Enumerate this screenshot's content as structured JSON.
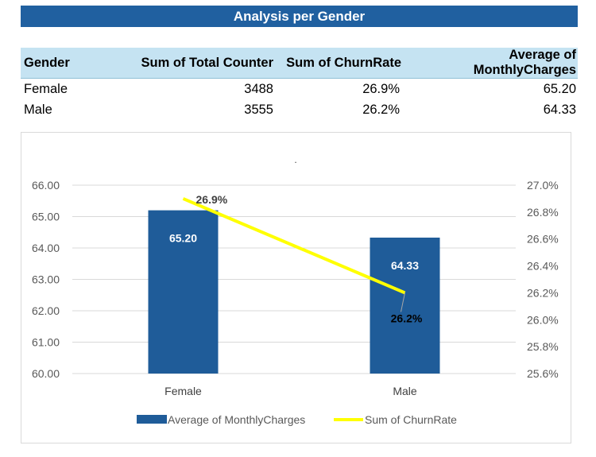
{
  "report": {
    "title": "Analysis per Gender"
  },
  "pivot_table": {
    "headers": [
      "Gender",
      "Sum of Total Counter",
      "Sum of ChurnRate",
      "Average of MonthlyCharges"
    ],
    "rows": [
      [
        "Female",
        "3488",
        "26.9%",
        "65.20"
      ],
      [
        "Male",
        "3555",
        "26.2%",
        "64.33"
      ]
    ]
  },
  "chart_data": {
    "type": "bar",
    "title": ".",
    "categories": [
      "Female",
      "Male"
    ],
    "series": [
      {
        "name": "Average of MonthlyCharges",
        "type": "bar",
        "axis": "primary",
        "values": [
          65.2,
          64.33
        ],
        "labels": [
          "65.20",
          "64.33"
        ],
        "color": "#1f5c99"
      },
      {
        "name": "Sum of ChurnRate",
        "type": "line",
        "axis": "secondary",
        "values": [
          0.269,
          0.262
        ],
        "labels": [
          "26.9%",
          "26.2%"
        ],
        "color": "#ffff00"
      }
    ],
    "y_primary": {
      "ylim": [
        60,
        66
      ],
      "ticks": [
        "60.00",
        "61.00",
        "62.00",
        "63.00",
        "64.00",
        "65.00",
        "66.00"
      ]
    },
    "y_secondary": {
      "ylim": [
        0.256,
        0.27
      ],
      "ticks": [
        "25.6%",
        "25.8%",
        "26.0%",
        "26.2%",
        "26.4%",
        "26.6%",
        "26.8%",
        "27.0%"
      ]
    },
    "grid": true,
    "legend": "bottom"
  }
}
